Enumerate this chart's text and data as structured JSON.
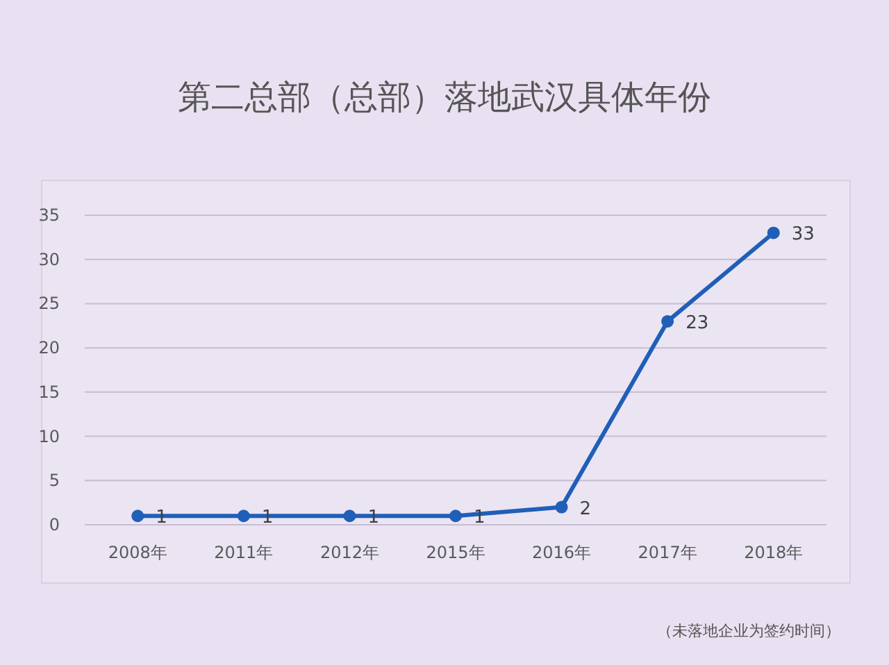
{
  "chart_data": {
    "type": "line",
    "title": "第二总部（总部）落地武汉具体年份",
    "categories": [
      "2008年",
      "2011年",
      "2012年",
      "2015年",
      "2016年",
      "2017年",
      "2018年"
    ],
    "values": [
      1,
      1,
      1,
      1,
      2,
      23,
      33
    ],
    "color": "#1f5fb8",
    "ylim": [
      0,
      35
    ],
    "yticks": [
      0,
      5,
      10,
      15,
      20,
      25,
      30,
      35
    ],
    "grid": "y",
    "marker": "circle",
    "data_labels": true,
    "annotations": [
      "（未落地企业为签约时间）"
    ]
  }
}
